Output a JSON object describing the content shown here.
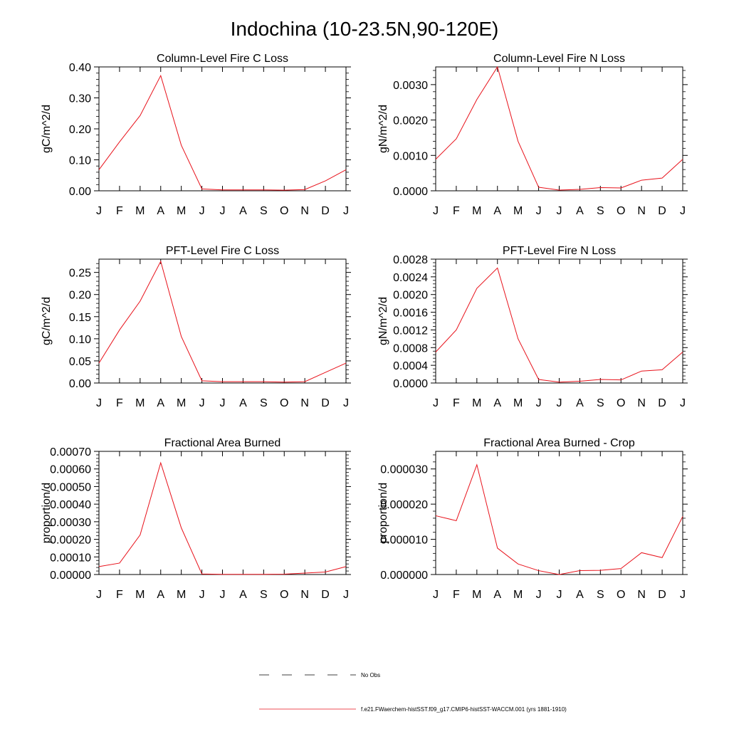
{
  "title": "Indochina (10-23.5N,90-120E)",
  "months": [
    "J",
    "F",
    "M",
    "A",
    "M",
    "J",
    "J",
    "A",
    "S",
    "O",
    "N",
    "D",
    "J"
  ],
  "series_color": "#e8121b",
  "legend": {
    "no_obs_label": "No Obs",
    "model_label": "f.e21.FWaerchem-histSST.f09_g17.CMIP6-histSST-WACCM.001 (yrs 1881-1910)"
  },
  "chart_data": [
    {
      "type": "line",
      "title": "Column-Level Fire C Loss",
      "ylabel": "gC/m^2/d",
      "ylim": [
        0,
        0.4
      ],
      "major_ticks": [
        0.0,
        0.1,
        0.2,
        0.3,
        0.4
      ],
      "tick_labels": [
        "0.00",
        "0.10",
        "0.20",
        "0.30",
        "0.40"
      ],
      "values": [
        0.068,
        0.158,
        0.243,
        0.372,
        0.147,
        0.006,
        0.003,
        0.003,
        0.003,
        0.002,
        0.004,
        0.032,
        0.068
      ]
    },
    {
      "type": "line",
      "title": "Column-Level Fire N Loss",
      "ylabel": "gN/m^2/d",
      "ylim": [
        0,
        0.0035
      ],
      "major_ticks": [
        0.0,
        0.001,
        0.002,
        0.003
      ],
      "tick_labels": [
        "0.0000",
        "0.0010",
        "0.0020",
        "0.0030"
      ],
      "values": [
        0.00089,
        0.00147,
        0.00258,
        0.0035,
        0.0014,
        0.0001,
        2e-05,
        4e-05,
        9e-05,
        8e-05,
        0.0003,
        0.00036,
        0.00089
      ]
    },
    {
      "type": "line",
      "title": "PFT-Level Fire C Loss",
      "ylabel": "gC/m^2/d",
      "ylim": [
        0,
        0.28
      ],
      "major_ticks": [
        0.0,
        0.05,
        0.1,
        0.15,
        0.2,
        0.25
      ],
      "tick_labels": [
        "0.00",
        "0.05",
        "0.10",
        "0.15",
        "0.20",
        "0.25"
      ],
      "values": [
        0.045,
        0.12,
        0.185,
        0.275,
        0.105,
        0.005,
        0.003,
        0.003,
        0.003,
        0.002,
        0.003,
        0.024,
        0.045
      ]
    },
    {
      "type": "line",
      "title": "PFT-Level Fire N Loss",
      "ylabel": "gN/m^2/d",
      "ylim": [
        0,
        0.0028
      ],
      "major_ticks": [
        0.0,
        0.0004,
        0.0008,
        0.0012,
        0.0016,
        0.002,
        0.0024,
        0.0028
      ],
      "tick_labels": [
        "0.0000",
        "0.0004",
        "0.0008",
        "0.0012",
        "0.0016",
        "0.0020",
        "0.0024",
        "0.0028"
      ],
      "values": [
        0.0007,
        0.0012,
        0.00214,
        0.0026,
        0.001,
        8e-05,
        2e-05,
        4e-05,
        8e-05,
        7e-05,
        0.00027,
        0.0003,
        0.0007
      ]
    },
    {
      "type": "line",
      "title": "Fractional Area Burned",
      "ylabel": "proportion/d",
      "ylim": [
        0,
        0.0007
      ],
      "major_ticks": [
        0,
        0.0001,
        0.0002,
        0.0003,
        0.0004,
        0.0005,
        0.0006,
        0.0007
      ],
      "tick_labels": [
        "0.00000",
        "0.00010",
        "0.00020",
        "0.00030",
        "0.00040",
        "0.00050",
        "0.00060",
        "0.00070"
      ],
      "values": [
        4.5e-05,
        6.5e-05,
        0.000225,
        0.000635,
        0.000265,
        3e-06,
        1e-06,
        1e-06,
        1e-06,
        2e-06,
        8e-06,
        1.4e-05,
        4.5e-05
      ]
    },
    {
      "type": "line",
      "title": "Fractional Area Burned - Crop",
      "ylabel": "proportion/d",
      "ylim": [
        0,
        3.5e-05
      ],
      "major_ticks": [
        0,
        1e-05,
        2e-05,
        3e-05
      ],
      "tick_labels": [
        "0.000000",
        "0.000010",
        "0.000020",
        "0.000030"
      ],
      "values": [
        1.67e-05,
        1.53e-05,
        3.12e-05,
        7.5e-06,
        3e-06,
        1.1e-06,
        0.0,
        1.1e-06,
        1.2e-06,
        1.7e-06,
        6.2e-06,
        4.8e-06,
        1.65e-05
      ]
    }
  ]
}
